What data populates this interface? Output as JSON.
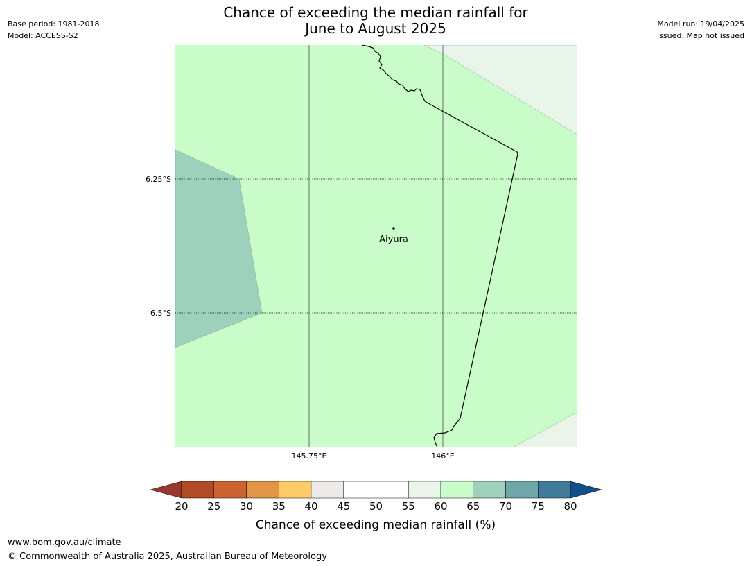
{
  "header": {
    "base_period": "Base period: 1981-2018",
    "model": "Model: ACCESS-S2",
    "title_line1": "Chance of exceeding the median rainfall for",
    "title_line2": "June to August 2025",
    "model_run": "Model run: 19/04/2025",
    "issued": "Issued: Map not issued"
  },
  "map": {
    "lon_ticks": [
      "145.75°E",
      "146°E"
    ],
    "lat_ticks": [
      "6.25°S",
      "6.5°S"
    ],
    "place": "Aiyura",
    "colors": {
      "c60_65": "#c9fcc9",
      "c55_60": "#e8f5e8",
      "c65_70": "#9ed1bb",
      "coast": "#000000",
      "grid": "#000000"
    }
  },
  "colorbar": {
    "title": "Chance of exceeding median rainfall (%)",
    "ticks": [
      "20",
      "25",
      "30",
      "35",
      "40",
      "45",
      "50",
      "55",
      "60",
      "65",
      "70",
      "75",
      "80"
    ],
    "under_color": "#98382a",
    "over_color": "#154f8a",
    "colors": [
      "#b24a27",
      "#cc6430",
      "#e39447",
      "#fdca68",
      "#eeeae7",
      "#ffffff",
      "#ffffff",
      "#e8f5e8",
      "#c9fcc9",
      "#9ed1bb",
      "#6fa6a8",
      "#417b9a"
    ]
  },
  "footer": {
    "url": "www.bom.gov.au/climate",
    "copyright": "© Commonwealth of Australia 2025, Australian Bureau of Meteorology"
  }
}
